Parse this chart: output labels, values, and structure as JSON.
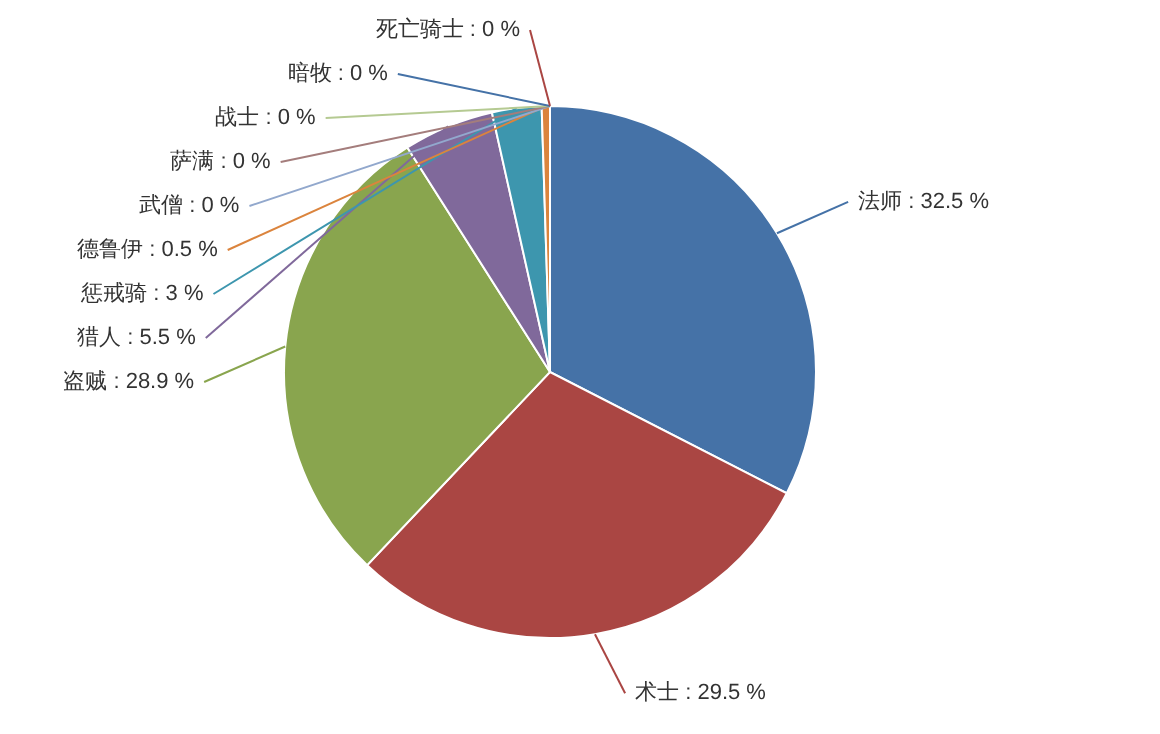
{
  "chart_data": {
    "type": "pie",
    "categories": [
      "法师",
      "术士",
      "盗贼",
      "猎人",
      "惩戒骑",
      "德鲁伊",
      "武僧",
      "萨满",
      "战士",
      "暗牧",
      "死亡骑士"
    ],
    "values": [
      32.5,
      29.5,
      28.9,
      5.5,
      3,
      0.5,
      0,
      0,
      0,
      0,
      0
    ],
    "value_labels": [
      ": 32.5 %",
      ": 29.5 %",
      ": 28.9 %",
      ": 5.5 %",
      ": 3 %",
      ": 0.5 %",
      ": 0 %",
      ": 0 %",
      ": 0 %",
      ": 0 %",
      ": 0 %"
    ],
    "colors": [
      "#4572a7",
      "#aa4643",
      "#89a54e",
      "#80699b",
      "#3d96ae",
      "#db843d",
      "#92a8cd",
      "#a47d7c",
      "#b5ca92",
      "#4572a7",
      "#aa4643"
    ]
  }
}
